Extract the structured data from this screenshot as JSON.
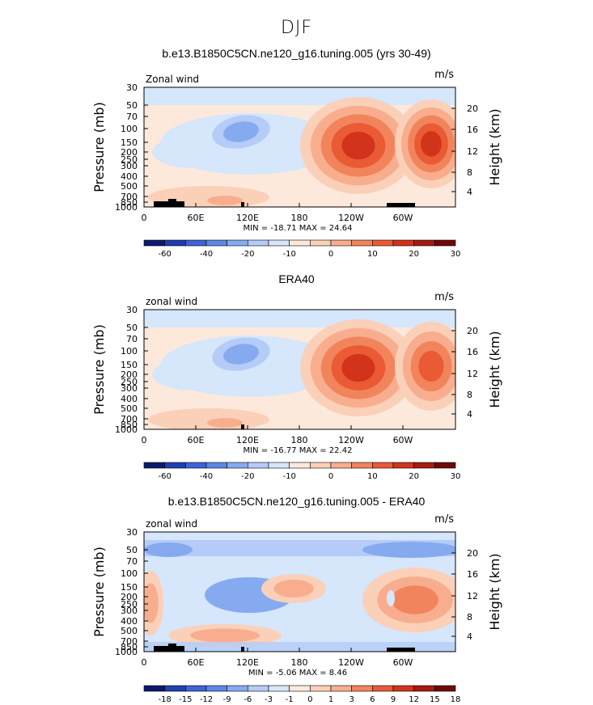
{
  "page_title": "DJF",
  "chart_data": [
    {
      "type": "heatmap",
      "title": "b.e13.B1850C5CN.ne120_g16.tuning.005 (yrs 30-49)",
      "subtitle_left": "Zonal wind",
      "units": "m/s",
      "ylabel": "Pressure (mb)",
      "ylabel_right": "Height (km)",
      "x_ticks": [
        "0",
        "60E",
        "120E",
        "180",
        "120W",
        "60W"
      ],
      "y_ticks": [
        "30",
        "50",
        "70",
        "100",
        "150",
        "200",
        "250",
        "300",
        "400",
        "500",
        "700",
        "850",
        "1000"
      ],
      "y2_ticks": [
        "20",
        "16",
        "12",
        "8",
        "4"
      ],
      "stats": "MIN = -18.71   MAX =  24.64",
      "colorbar_levels": [
        "-60",
        "-40",
        "-20",
        "-10",
        "0",
        "10",
        "20",
        "30"
      ],
      "extremes": {
        "min": -18.71,
        "max": 24.64
      },
      "features": [
        {
          "name": "jet maximum",
          "lon": 135,
          "p": 180,
          "value": 24
        },
        {
          "name": "jet maximum",
          "lon": 290,
          "p": 180,
          "value": 20
        },
        {
          "name": "easterly minimum",
          "lon": 115,
          "p": 120,
          "value": -18
        }
      ]
    },
    {
      "type": "heatmap",
      "title": "ERA40",
      "subtitle_left": "zonal wind",
      "units": "m/s",
      "ylabel": "Pressure (mb)",
      "ylabel_right": "Height (km)",
      "x_ticks": [
        "0",
        "60E",
        "120E",
        "180",
        "120W",
        "60W"
      ],
      "y_ticks": [
        "30",
        "50",
        "70",
        "100",
        "150",
        "200",
        "250",
        "300",
        "400",
        "500",
        "700",
        "850",
        "1000"
      ],
      "y2_ticks": [
        "20",
        "16",
        "12",
        "8",
        "4"
      ],
      "stats": "MIN = -16.77   MAX =  22.42",
      "colorbar_levels": [
        "-60",
        "-40",
        "-20",
        "-10",
        "0",
        "10",
        "20",
        "30"
      ],
      "extremes": {
        "min": -16.77,
        "max": 22.42
      },
      "features": [
        {
          "name": "jet maximum",
          "lon": 142,
          "p": 180,
          "value": 22
        },
        {
          "name": "jet maximum",
          "lon": 300,
          "p": 180,
          "value": 16
        },
        {
          "name": "easterly minimum",
          "lon": 125,
          "p": 120,
          "value": -16
        }
      ]
    },
    {
      "type": "heatmap",
      "title": "b.e13.B1850C5CN.ne120_g16.tuning.005 - ERA40",
      "subtitle_left": "zonal wind",
      "units": "m/s",
      "ylabel": "Pressure (mb)",
      "ylabel_right": "Height (km)",
      "x_ticks": [
        "0",
        "60E",
        "120E",
        "180",
        "120W",
        "60W"
      ],
      "y_ticks": [
        "30",
        "50",
        "70",
        "100",
        "150",
        "200",
        "250",
        "300",
        "400",
        "500",
        "700",
        "850",
        "1000"
      ],
      "y2_ticks": [
        "20",
        "16",
        "12",
        "8",
        "4"
      ],
      "stats": "MIN = -5.06   MAX =   8.46",
      "colorbar_levels": [
        "-18",
        "-15",
        "-12",
        "-9",
        "-6",
        "-3",
        "-1",
        "0",
        "1",
        "3",
        "6",
        "9",
        "12",
        "15",
        "18"
      ],
      "extremes": {
        "min": -5.06,
        "max": 8.46
      }
    }
  ],
  "colors": {
    "scale": [
      "#0a1a6e",
      "#1f3fb0",
      "#3d63d6",
      "#5d87e6",
      "#86aaf0",
      "#b4ccf7",
      "#d6e6fb",
      "#fde9dc",
      "#fbd0b8",
      "#f8ae8e",
      "#f2845c",
      "#e95a35",
      "#d2331b",
      "#a51b10",
      "#6e0a0a"
    ]
  }
}
